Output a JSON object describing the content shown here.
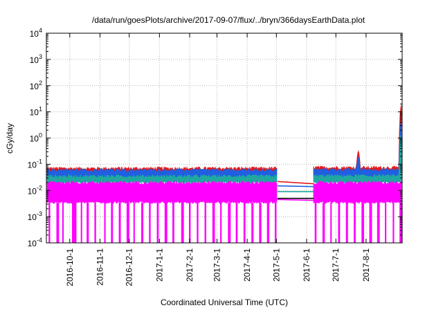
{
  "chart_data": {
    "type": "area",
    "title": "/data/run/goesPlots/archive/2017-09-07/flux/../bryn/366daysEarthData.plot",
    "xlabel": "Coordinated Universal Time (UTC)",
    "ylabel": "cGy/day",
    "x_range": [
      "2016-09-07",
      "2017-09-07"
    ],
    "ylim": [
      0.0001,
      10000
    ],
    "y_scale": "log",
    "grid": true,
    "x_ticks": [
      {
        "date": "2016-10-01",
        "label": "2016-10-1"
      },
      {
        "date": "2016-11-01",
        "label": "2016-11-1"
      },
      {
        "date": "2016-12-01",
        "label": "2016-12-1"
      },
      {
        "date": "2017-01-01",
        "label": "2017-1-1"
      },
      {
        "date": "2017-02-01",
        "label": "2017-2-1"
      },
      {
        "date": "2017-03-01",
        "label": "2017-3-1"
      },
      {
        "date": "2017-04-01",
        "label": "2017-4-1"
      },
      {
        "date": "2017-05-01",
        "label": "2017-5-1"
      },
      {
        "date": "2017-06-01",
        "label": "2017-6-1"
      },
      {
        "date": "2017-07-01",
        "label": "2017-7-1"
      },
      {
        "date": "2017-08-01",
        "label": "2017-8-1"
      }
    ],
    "y_ticks": [
      {
        "value": 0.0001,
        "base": "10",
        "exp": "-4"
      },
      {
        "value": 0.001,
        "base": "10",
        "exp": "-3"
      },
      {
        "value": 0.01,
        "base": "10",
        "exp": "-2"
      },
      {
        "value": 0.1,
        "base": "10",
        "exp": "-1"
      },
      {
        "value": 1,
        "base": "10",
        "exp": "0"
      },
      {
        "value": 10,
        "base": "10",
        "exp": "1"
      },
      {
        "value": 100,
        "base": "10",
        "exp": "2"
      },
      {
        "value": 1000,
        "base": "10",
        "exp": "3"
      },
      {
        "value": 10000,
        "base": "10",
        "exp": "4"
      }
    ],
    "data_gap": [
      "2017-05-02",
      "2017-06-08"
    ],
    "series": [
      {
        "color": "#e41a1c",
        "segments": [
          {
            "x": [
              "2016-09-07",
              "2017-05-02"
            ],
            "low": 0.05,
            "high": 0.07
          },
          {
            "x": [
              "2017-06-08",
              "2017-09-07"
            ],
            "low": 0.05,
            "high": 0.075
          }
        ],
        "spikes": [
          {
            "x": "2017-07-24",
            "y": 0.35
          },
          {
            "x": "2017-09-06",
            "y": 20
          }
        ],
        "gap_line": [
          0.022,
          0.018
        ]
      },
      {
        "color": "#1f5fe0",
        "segments": [
          {
            "x": [
              "2016-09-07",
              "2017-05-02"
            ],
            "low": 0.03,
            "high": 0.06
          },
          {
            "x": [
              "2017-06-08",
              "2017-09-07"
            ],
            "low": 0.03,
            "high": 0.062
          }
        ],
        "spikes": [
          {
            "x": "2017-07-24",
            "y": 0.2
          },
          {
            "x": "2017-09-06",
            "y": 5
          }
        ],
        "gap_line": [
          0.015,
          0.014
        ]
      },
      {
        "color": "#20a8a0",
        "segments": [
          {
            "x": [
              "2016-09-07",
              "2017-05-02"
            ],
            "low": 0.02,
            "high": 0.035
          },
          {
            "x": [
              "2017-06-08",
              "2017-09-07"
            ],
            "low": 0.02,
            "high": 0.036
          }
        ],
        "spikes": [
          {
            "x": "2017-09-06",
            "y": 1.5
          }
        ],
        "gap_line": [
          0.009,
          0.009
        ]
      },
      {
        "color": "#ff00ff",
        "segments": [
          {
            "x": [
              "2016-09-07",
              "2017-05-02"
            ],
            "low": 0.0035,
            "high": 0.02
          },
          {
            "x": [
              "2017-06-08",
              "2017-09-07"
            ],
            "low": 0.0035,
            "high": 0.02
          }
        ],
        "dropouts": [
          "2016-09-10",
          "2016-09-18",
          "2016-09-24",
          "2016-10-04",
          "2016-10-05",
          "2016-10-06",
          "2016-10-13",
          "2016-10-19",
          "2016-10-27",
          "2016-11-06",
          "2016-11-13",
          "2016-11-21",
          "2016-11-29",
          "2016-12-06",
          "2016-12-14",
          "2016-12-22",
          "2016-12-30",
          "2017-01-07",
          "2017-01-15",
          "2017-01-24",
          "2017-02-01",
          "2017-02-09",
          "2017-02-17",
          "2017-02-25",
          "2017-03-05",
          "2017-03-13",
          "2017-03-21",
          "2017-03-29",
          "2017-04-06",
          "2017-04-14",
          "2017-04-22",
          "2017-04-30",
          "2017-06-10",
          "2017-06-18",
          "2017-06-26",
          "2017-07-04",
          "2017-07-12",
          "2017-07-20",
          "2017-07-28",
          "2017-08-05",
          "2017-08-13",
          "2017-08-21",
          "2017-08-29",
          "2017-09-05"
        ],
        "gap_line": [
          0.0045,
          0.0042
        ]
      },
      {
        "color": "#000000",
        "segments": [],
        "gap_line": [
          0.005,
          0.005
        ]
      }
    ]
  }
}
